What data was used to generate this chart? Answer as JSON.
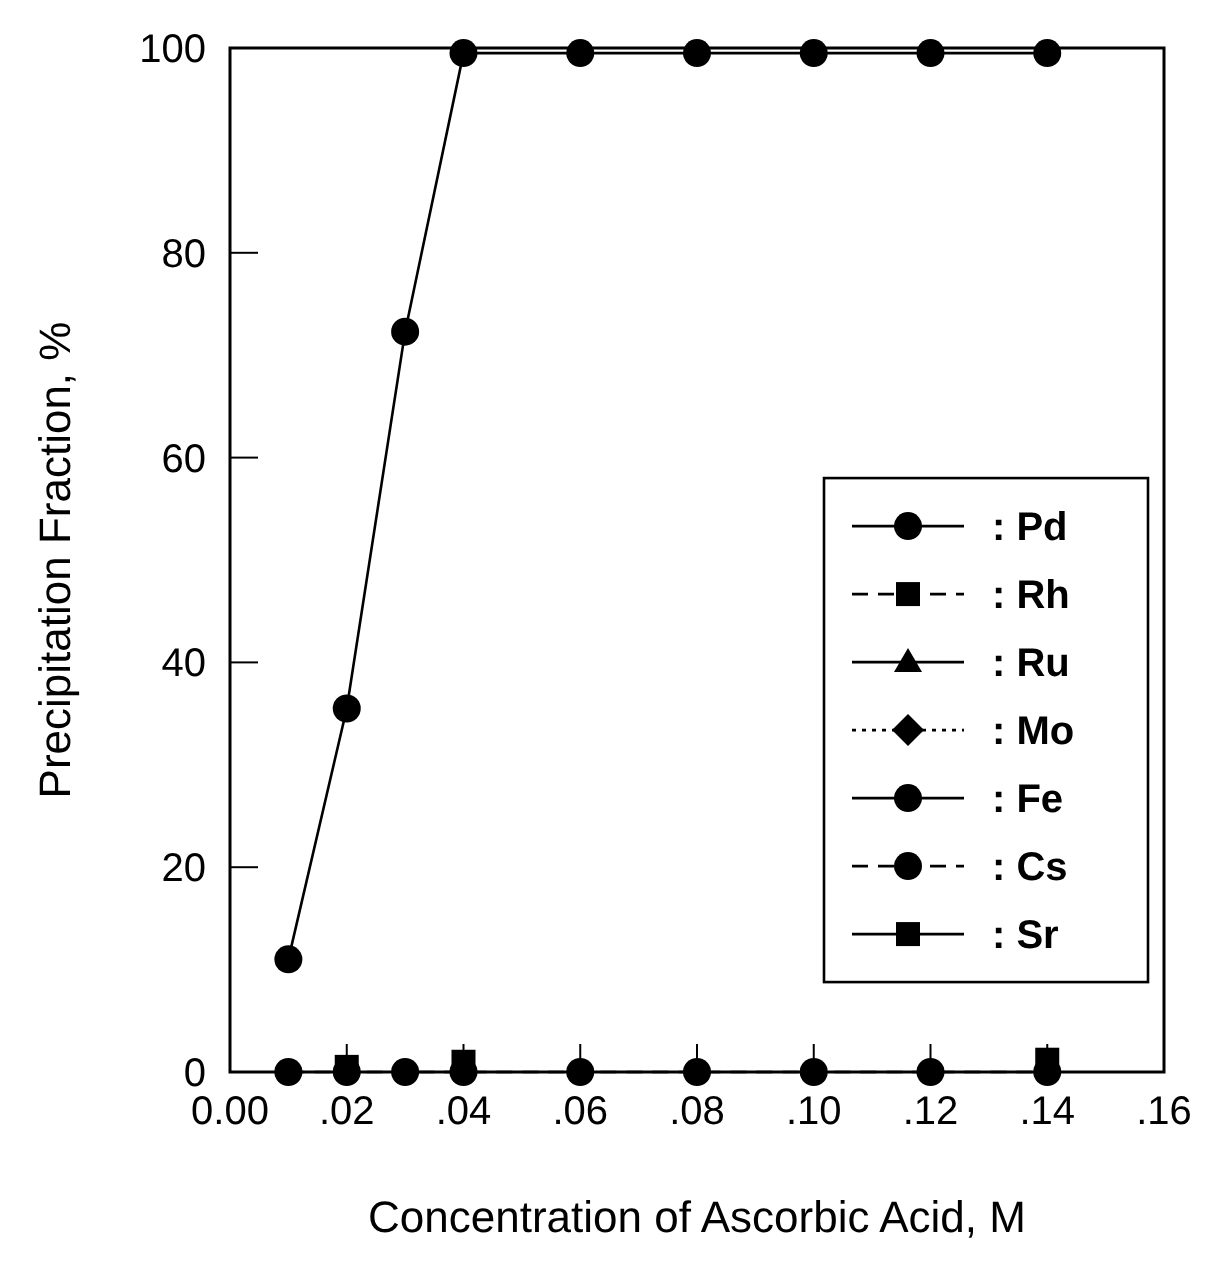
{
  "chart_data": {
    "type": "line",
    "xlabel": "Concentration of Ascorbic Acid, M",
    "ylabel": "Precipitation Fraction, %",
    "x": [
      0.01,
      0.02,
      0.03,
      0.04,
      0.06,
      0.08,
      0.1,
      0.12,
      0.14
    ],
    "xlim": [
      0,
      0.16
    ],
    "xticks": [
      {
        "value": 0,
        "label": "0.00"
      },
      {
        "value": 0.02,
        "label": ".02"
      },
      {
        "value": 0.04,
        "label": ".04"
      },
      {
        "value": 0.06,
        "label": ".06"
      },
      {
        "value": 0.08,
        "label": ".08"
      },
      {
        "value": 0.1,
        "label": ".10"
      },
      {
        "value": 0.12,
        "label": ".12"
      },
      {
        "value": 0.14,
        "label": ".14"
      },
      {
        "value": 0.16,
        "label": ".16"
      }
    ],
    "ylim": [
      0,
      100
    ],
    "yticks": [
      0,
      20,
      40,
      60,
      80,
      100
    ],
    "grid": false,
    "legend": "right",
    "series": [
      {
        "name": ": Pd",
        "color": "#000000",
        "marker": "circle",
        "line_style": "solid",
        "values": [
          11,
          35.5,
          72.3,
          99.5,
          99.5,
          99.5,
          99.5,
          99.5,
          99.5
        ]
      },
      {
        "name": ": Rh",
        "color": "#000000",
        "marker": "square",
        "line_style": "dashed",
        "values": [
          null,
          null,
          null,
          null,
          null,
          null,
          null,
          null,
          null
        ]
      },
      {
        "name": ": Ru",
        "color": "#000000",
        "marker": "triangle",
        "line_style": "solid",
        "values": [
          null,
          null,
          null,
          null,
          null,
          null,
          null,
          null,
          null
        ]
      },
      {
        "name": ": Mo",
        "color": "#000000",
        "marker": "diamond",
        "line_style": "dotted",
        "values": [
          null,
          null,
          null,
          null,
          null,
          null,
          null,
          null,
          null
        ]
      },
      {
        "name": ": Fe",
        "color": "#000000",
        "marker": "circle",
        "line_style": "solid",
        "values": [
          null,
          null,
          null,
          null,
          null,
          null,
          null,
          null,
          null
        ]
      },
      {
        "name": ": Cs",
        "color": "#000000",
        "marker": "circle",
        "line_style": "dashed",
        "values": [
          0,
          0,
          0,
          0,
          0,
          0,
          0,
          0,
          0
        ]
      },
      {
        "name": ": Sr",
        "color": "#000000",
        "marker": "square",
        "line_style": "solid",
        "values": [
          null,
          0.5,
          null,
          1,
          null,
          null,
          null,
          null,
          1.2
        ]
      }
    ]
  }
}
